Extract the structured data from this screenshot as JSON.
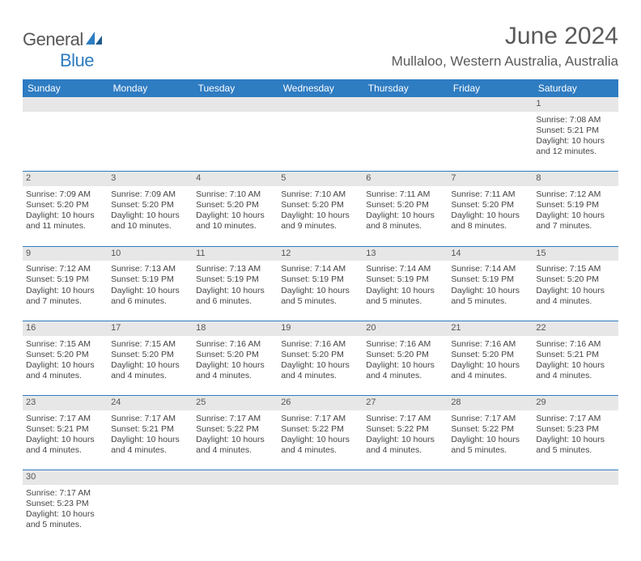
{
  "brand": {
    "text_general": "General",
    "text_blue": "Blue",
    "icon_color": "#2e7cc2"
  },
  "title": "June 2024",
  "location": "Mullaloo, Western Australia, Australia",
  "colors": {
    "header_bg": "#2e7cc2",
    "header_text": "#ffffff",
    "daynum_bg": "#e7e7e7",
    "text": "#444444",
    "rule": "#2e7cc2"
  },
  "weekdays": [
    "Sunday",
    "Monday",
    "Tuesday",
    "Wednesday",
    "Thursday",
    "Friday",
    "Saturday"
  ],
  "weeks": [
    [
      {
        "day": "",
        "sunrise": "",
        "sunset": "",
        "daylight": ""
      },
      {
        "day": "",
        "sunrise": "",
        "sunset": "",
        "daylight": ""
      },
      {
        "day": "",
        "sunrise": "",
        "sunset": "",
        "daylight": ""
      },
      {
        "day": "",
        "sunrise": "",
        "sunset": "",
        "daylight": ""
      },
      {
        "day": "",
        "sunrise": "",
        "sunset": "",
        "daylight": ""
      },
      {
        "day": "",
        "sunrise": "",
        "sunset": "",
        "daylight": ""
      },
      {
        "day": "1",
        "sunrise": "Sunrise: 7:08 AM",
        "sunset": "Sunset: 5:21 PM",
        "daylight": "Daylight: 10 hours and 12 minutes."
      }
    ],
    [
      {
        "day": "2",
        "sunrise": "Sunrise: 7:09 AM",
        "sunset": "Sunset: 5:20 PM",
        "daylight": "Daylight: 10 hours and 11 minutes."
      },
      {
        "day": "3",
        "sunrise": "Sunrise: 7:09 AM",
        "sunset": "Sunset: 5:20 PM",
        "daylight": "Daylight: 10 hours and 10 minutes."
      },
      {
        "day": "4",
        "sunrise": "Sunrise: 7:10 AM",
        "sunset": "Sunset: 5:20 PM",
        "daylight": "Daylight: 10 hours and 10 minutes."
      },
      {
        "day": "5",
        "sunrise": "Sunrise: 7:10 AM",
        "sunset": "Sunset: 5:20 PM",
        "daylight": "Daylight: 10 hours and 9 minutes."
      },
      {
        "day": "6",
        "sunrise": "Sunrise: 7:11 AM",
        "sunset": "Sunset: 5:20 PM",
        "daylight": "Daylight: 10 hours and 8 minutes."
      },
      {
        "day": "7",
        "sunrise": "Sunrise: 7:11 AM",
        "sunset": "Sunset: 5:20 PM",
        "daylight": "Daylight: 10 hours and 8 minutes."
      },
      {
        "day": "8",
        "sunrise": "Sunrise: 7:12 AM",
        "sunset": "Sunset: 5:19 PM",
        "daylight": "Daylight: 10 hours and 7 minutes."
      }
    ],
    [
      {
        "day": "9",
        "sunrise": "Sunrise: 7:12 AM",
        "sunset": "Sunset: 5:19 PM",
        "daylight": "Daylight: 10 hours and 7 minutes."
      },
      {
        "day": "10",
        "sunrise": "Sunrise: 7:13 AM",
        "sunset": "Sunset: 5:19 PM",
        "daylight": "Daylight: 10 hours and 6 minutes."
      },
      {
        "day": "11",
        "sunrise": "Sunrise: 7:13 AM",
        "sunset": "Sunset: 5:19 PM",
        "daylight": "Daylight: 10 hours and 6 minutes."
      },
      {
        "day": "12",
        "sunrise": "Sunrise: 7:14 AM",
        "sunset": "Sunset: 5:19 PM",
        "daylight": "Daylight: 10 hours and 5 minutes."
      },
      {
        "day": "13",
        "sunrise": "Sunrise: 7:14 AM",
        "sunset": "Sunset: 5:19 PM",
        "daylight": "Daylight: 10 hours and 5 minutes."
      },
      {
        "day": "14",
        "sunrise": "Sunrise: 7:14 AM",
        "sunset": "Sunset: 5:19 PM",
        "daylight": "Daylight: 10 hours and 5 minutes."
      },
      {
        "day": "15",
        "sunrise": "Sunrise: 7:15 AM",
        "sunset": "Sunset: 5:20 PM",
        "daylight": "Daylight: 10 hours and 4 minutes."
      }
    ],
    [
      {
        "day": "16",
        "sunrise": "Sunrise: 7:15 AM",
        "sunset": "Sunset: 5:20 PM",
        "daylight": "Daylight: 10 hours and 4 minutes."
      },
      {
        "day": "17",
        "sunrise": "Sunrise: 7:15 AM",
        "sunset": "Sunset: 5:20 PM",
        "daylight": "Daylight: 10 hours and 4 minutes."
      },
      {
        "day": "18",
        "sunrise": "Sunrise: 7:16 AM",
        "sunset": "Sunset: 5:20 PM",
        "daylight": "Daylight: 10 hours and 4 minutes."
      },
      {
        "day": "19",
        "sunrise": "Sunrise: 7:16 AM",
        "sunset": "Sunset: 5:20 PM",
        "daylight": "Daylight: 10 hours and 4 minutes."
      },
      {
        "day": "20",
        "sunrise": "Sunrise: 7:16 AM",
        "sunset": "Sunset: 5:20 PM",
        "daylight": "Daylight: 10 hours and 4 minutes."
      },
      {
        "day": "21",
        "sunrise": "Sunrise: 7:16 AM",
        "sunset": "Sunset: 5:20 PM",
        "daylight": "Daylight: 10 hours and 4 minutes."
      },
      {
        "day": "22",
        "sunrise": "Sunrise: 7:16 AM",
        "sunset": "Sunset: 5:21 PM",
        "daylight": "Daylight: 10 hours and 4 minutes."
      }
    ],
    [
      {
        "day": "23",
        "sunrise": "Sunrise: 7:17 AM",
        "sunset": "Sunset: 5:21 PM",
        "daylight": "Daylight: 10 hours and 4 minutes."
      },
      {
        "day": "24",
        "sunrise": "Sunrise: 7:17 AM",
        "sunset": "Sunset: 5:21 PM",
        "daylight": "Daylight: 10 hours and 4 minutes."
      },
      {
        "day": "25",
        "sunrise": "Sunrise: 7:17 AM",
        "sunset": "Sunset: 5:22 PM",
        "daylight": "Daylight: 10 hours and 4 minutes."
      },
      {
        "day": "26",
        "sunrise": "Sunrise: 7:17 AM",
        "sunset": "Sunset: 5:22 PM",
        "daylight": "Daylight: 10 hours and 4 minutes."
      },
      {
        "day": "27",
        "sunrise": "Sunrise: 7:17 AM",
        "sunset": "Sunset: 5:22 PM",
        "daylight": "Daylight: 10 hours and 4 minutes."
      },
      {
        "day": "28",
        "sunrise": "Sunrise: 7:17 AM",
        "sunset": "Sunset: 5:22 PM",
        "daylight": "Daylight: 10 hours and 5 minutes."
      },
      {
        "day": "29",
        "sunrise": "Sunrise: 7:17 AM",
        "sunset": "Sunset: 5:23 PM",
        "daylight": "Daylight: 10 hours and 5 minutes."
      }
    ],
    [
      {
        "day": "30",
        "sunrise": "Sunrise: 7:17 AM",
        "sunset": "Sunset: 5:23 PM",
        "daylight": "Daylight: 10 hours and 5 minutes."
      },
      {
        "day": "",
        "sunrise": "",
        "sunset": "",
        "daylight": ""
      },
      {
        "day": "",
        "sunrise": "",
        "sunset": "",
        "daylight": ""
      },
      {
        "day": "",
        "sunrise": "",
        "sunset": "",
        "daylight": ""
      },
      {
        "day": "",
        "sunrise": "",
        "sunset": "",
        "daylight": ""
      },
      {
        "day": "",
        "sunrise": "",
        "sunset": "",
        "daylight": ""
      },
      {
        "day": "",
        "sunrise": "",
        "sunset": "",
        "daylight": ""
      }
    ]
  ]
}
